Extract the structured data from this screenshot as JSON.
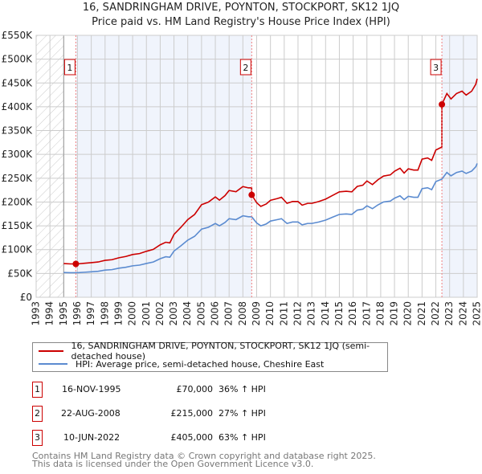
{
  "title": "16, SANDRINGHAM DRIVE, SANDRINGHAM DRIVE, POYNTON, STOCKPORT, SK12 1JQ",
  "title_line1": "16, SANDRINGHAM DRIVE, POYNTON, STOCKPORT, SK12 1JQ",
  "title_line2": "Price paid vs. HM Land Registry's House Price Index (HPI)",
  "chart_data": {
    "type": "line",
    "title": "16, SANDRINGHAM DRIVE, POYNTON, STOCKPORT, SK12 1JQ — Price paid vs. HM Land Registry's House Price Index (HPI)",
    "xlim": [
      1993,
      2025
    ],
    "ylim": [
      0,
      550000
    ],
    "y_ticks": [
      0,
      50000,
      100000,
      150000,
      200000,
      250000,
      300000,
      350000,
      400000,
      450000,
      500000,
      550000
    ],
    "y_tick_labels": [
      "£0",
      "£50K",
      "£100K",
      "£150K",
      "£200K",
      "£250K",
      "£300K",
      "£350K",
      "£400K",
      "£450K",
      "£500K",
      "£550K"
    ],
    "x_ticks": [
      "1993",
      "1994",
      "1995",
      "1996",
      "1997",
      "1998",
      "1999",
      "2000",
      "2001",
      "2002",
      "2003",
      "2004",
      "2005",
      "2006",
      "2007",
      "2008",
      "2009",
      "2010",
      "2011",
      "2012",
      "2013",
      "2014",
      "2015",
      "2016",
      "2017",
      "2018",
      "2019",
      "2020",
      "2021",
      "2022",
      "2023",
      "2024",
      "2025"
    ],
    "grid": true,
    "hpi_series": {
      "name": "HPI: Average price, semi-detached house, Cheshire East",
      "color": "#5b8bd0",
      "x": [
        1995.0,
        1995.5,
        1996.0,
        1996.5,
        1997.0,
        1997.5,
        1998.0,
        1998.5,
        1999.0,
        1999.5,
        2000.0,
        2000.5,
        2001.0,
        2001.5,
        2002.0,
        2002.4,
        2002.7,
        2003.0,
        2003.5,
        2004.0,
        2004.5,
        2005.0,
        2005.5,
        2006.0,
        2006.3,
        2006.7,
        2007.0,
        2007.5,
        2008.0,
        2008.4,
        2008.64,
        2009.0,
        2009.3,
        2009.7,
        2010.0,
        2010.5,
        2010.8,
        2011.2,
        2011.6,
        2012.0,
        2012.3,
        2012.7,
        2013.0,
        2013.5,
        2014.0,
        2014.5,
        2015.0,
        2015.5,
        2015.9,
        2016.3,
        2016.7,
        2017.0,
        2017.4,
        2017.8,
        2018.2,
        2018.7,
        2019.0,
        2019.4,
        2019.7,
        2020.0,
        2020.4,
        2020.7,
        2021.0,
        2021.4,
        2021.7,
        2022.0,
        2022.44,
        2022.8,
        2023.1,
        2023.5,
        2023.9,
        2024.2,
        2024.6,
        2024.9,
        2025.0
      ],
      "y": [
        52000,
        51500,
        51500,
        52500,
        53500,
        54500,
        57000,
        58000,
        61000,
        63000,
        66000,
        67500,
        71000,
        74000,
        81000,
        85000,
        84000,
        97000,
        108000,
        120000,
        128000,
        143000,
        147000,
        155000,
        150000,
        157000,
        165000,
        163000,
        171000,
        169000,
        169000,
        156000,
        150000,
        154000,
        160000,
        163000,
        165000,
        155000,
        158000,
        158000,
        152000,
        155000,
        155000,
        158000,
        162000,
        168000,
        174000,
        175000,
        174000,
        183000,
        185000,
        192000,
        186000,
        194000,
        200000,
        202000,
        208000,
        213000,
        205000,
        212000,
        210000,
        210000,
        228000,
        230000,
        226000,
        243000,
        248000,
        262000,
        255000,
        262000,
        265000,
        260000,
        265000,
        274000,
        281000
      ]
    },
    "price_series": {
      "name": "16, SANDRINGHAM DRIVE, POYNTON, STOCKPORT, SK12 1JQ (semi-detached house)",
      "color": "#cc0000",
      "note": "price paid indexed by HPI between sales"
    },
    "sales": [
      {
        "n": "1",
        "x": 1995.88,
        "price": 70000
      },
      {
        "n": "2",
        "x": 2008.64,
        "price": 215000
      },
      {
        "n": "3",
        "x": 2022.44,
        "price": 405000
      }
    ]
  },
  "legend": {
    "price_label": "16, SANDRINGHAM DRIVE, POYNTON, STOCKPORT, SK12 1JQ (semi-detached house)",
    "hpi_label": "HPI: Average price, semi-detached house, Cheshire East"
  },
  "transactions": [
    {
      "n": "1",
      "date": "16-NOV-1995",
      "price": "£70,000",
      "hpi": "36% ↑ HPI"
    },
    {
      "n": "2",
      "date": "22-AUG-2008",
      "price": "£215,000",
      "hpi": "27% ↑ HPI"
    },
    {
      "n": "3",
      "date": "10-JUN-2022",
      "price": "£405,000",
      "hpi": "63% ↑ HPI"
    }
  ],
  "footer": {
    "line1": "Contains HM Land Registry data © Crown copyright and database right 2025.",
    "line2": "This data is licensed under the Open Government Licence v3.0."
  }
}
